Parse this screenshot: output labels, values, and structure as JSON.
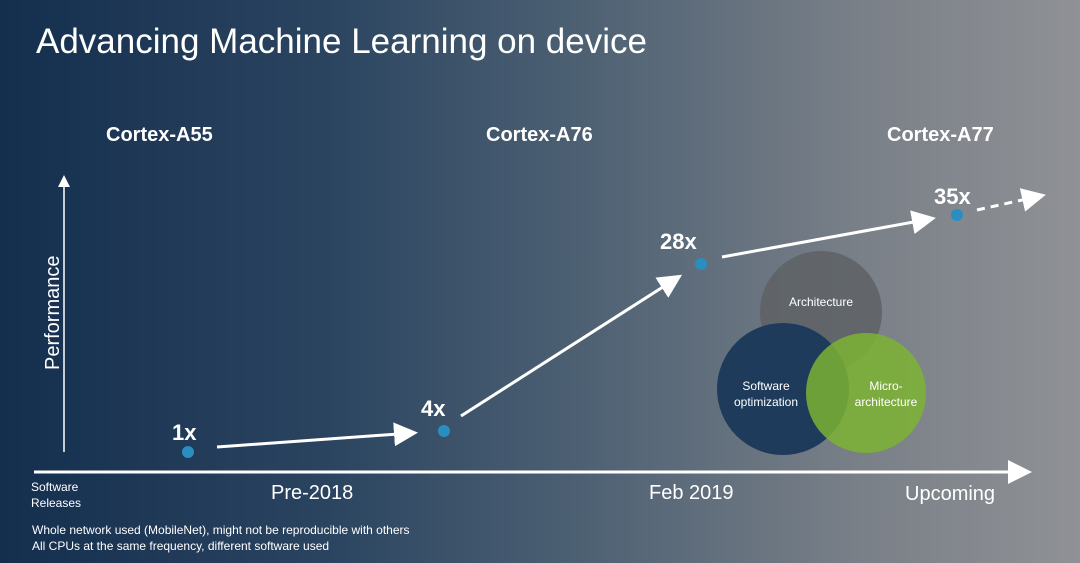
{
  "title": "Advancing Machine Learning on device",
  "chart_data": {
    "type": "line",
    "title": "Advancing Machine Learning on device",
    "ylabel": "Performance",
    "xlabel": "Software Releases",
    "processors": [
      "Cortex-A55",
      "Cortex-A76",
      "Cortex-A77"
    ],
    "categories": [
      "Pre-2018",
      "Feb 2019",
      "Upcoming"
    ],
    "points": [
      {
        "label": "1x",
        "value": 1
      },
      {
        "label": "4x",
        "value": 4
      },
      {
        "label": "28x",
        "value": 28
      },
      {
        "label": "35x",
        "value": 35
      }
    ],
    "point_color": "#2a8fc0",
    "trend_continues": "dashed arrow after 35x"
  },
  "venn": {
    "architecture": "Architecture",
    "software": "Software optimization",
    "micro": "Micro-architecture",
    "colors": {
      "architecture": "#5e6265",
      "software": "#1e3b5c",
      "micro": "#7cb332"
    }
  },
  "footnotes": [
    "Whole network used (MobileNet), might not be reproducible with others",
    "All CPUs at the same frequency, different software used"
  ]
}
